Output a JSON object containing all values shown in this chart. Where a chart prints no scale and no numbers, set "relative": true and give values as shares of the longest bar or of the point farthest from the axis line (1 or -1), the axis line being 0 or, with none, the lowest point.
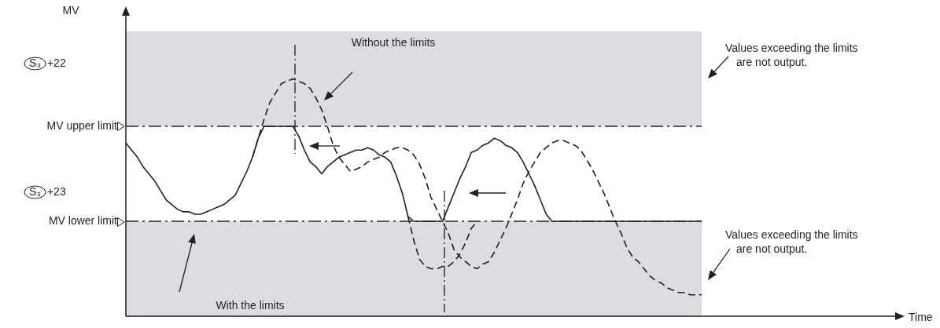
{
  "chart_data": {
    "type": "line",
    "relative": true,
    "legend": false,
    "marker": "none",
    "categories": [
      null,
      null,
      null,
      null,
      null,
      null,
      null,
      null,
      null,
      null,
      null,
      null,
      null,
      null,
      null,
      null,
      null,
      null,
      null,
      null,
      null,
      null,
      null,
      null,
      null,
      null,
      null,
      null,
      null,
      null,
      null,
      null,
      null,
      null,
      null,
      null,
      null,
      null,
      null,
      null,
      null,
      null,
      null,
      null,
      null,
      null,
      null,
      null,
      null,
      null,
      null,
      null,
      null,
      null,
      null,
      null,
      null,
      null,
      null,
      null,
      null,
      null,
      null,
      null,
      null,
      null,
      null,
      null,
      null,
      null,
      null,
      null,
      null,
      null,
      null,
      null,
      null,
      null,
      null,
      null,
      null,
      null,
      null,
      null,
      null,
      null,
      null,
      null,
      null,
      null,
      null,
      null,
      null,
      null,
      null,
      null,
      null,
      null,
      null,
      null,
      null
    ],
    "series": [
      {
        "color": "#231f20",
        "line_style": "solid",
        "values": [
          0.73,
          0.7,
          0.67,
          0.63,
          0.6,
          0.57,
          0.53,
          0.49,
          0.47,
          0.45,
          0.44,
          0.44,
          0.43,
          0.43,
          0.44,
          0.45,
          0.46,
          0.47,
          0.49,
          0.51,
          0.56,
          0.61,
          0.67,
          0.75,
          0.8,
          0.8,
          0.8,
          0.8,
          0.8,
          0.8,
          0.76,
          0.7,
          0.65,
          0.63,
          0.6,
          0.63,
          0.65,
          0.67,
          0.68,
          0.69,
          0.7,
          0.7,
          0.71,
          0.7,
          0.68,
          0.67,
          0.65,
          0.59,
          0.52,
          0.42,
          0.4,
          0.4,
          0.4,
          0.4,
          0.4,
          0.4,
          0.46,
          0.52,
          0.58,
          0.63,
          0.69,
          0.7,
          0.72,
          0.73,
          0.75,
          0.74,
          0.72,
          0.71,
          0.69,
          0.65,
          0.6,
          0.55,
          0.49,
          0.43,
          0.4,
          0.4,
          0.4,
          0.4,
          0.4,
          0.4,
          0.4,
          0.4,
          0.4,
          0.4,
          0.4,
          0.4,
          0.4,
          0.4,
          0.4,
          0.4,
          0.4,
          0.4,
          0.4,
          0.4,
          0.4,
          0.4,
          0.4,
          0.4,
          0.4,
          0.4,
          0.4
        ]
      },
      {
        "color": "#231f20",
        "line_style": "dashed",
        "values": [
          null,
          null,
          null,
          null,
          null,
          null,
          null,
          null,
          null,
          null,
          null,
          null,
          null,
          null,
          null,
          null,
          null,
          null,
          null,
          null,
          null,
          null,
          0.67,
          0.75,
          0.83,
          0.9,
          0.94,
          0.98,
          0.99,
          1.0,
          0.99,
          0.98,
          0.96,
          0.92,
          0.87,
          0.8,
          0.72,
          0.67,
          0.64,
          0.61,
          0.62,
          0.63,
          0.65,
          0.66,
          0.67,
          0.69,
          0.7,
          0.71,
          0.71,
          0.7,
          0.68,
          0.64,
          0.58,
          0.5,
          0.45,
          0.4,
          0.35,
          0.28,
          0.25,
          0.23,
          0.21,
          0.2,
          0.22,
          0.23,
          0.27,
          0.32,
          0.37,
          0.43,
          0.49,
          0.56,
          0.61,
          0.65,
          0.69,
          0.71,
          0.73,
          0.74,
          0.74,
          0.73,
          0.72,
          0.7,
          0.66,
          0.62,
          0.57,
          0.52,
          0.46,
          0.4,
          0.35,
          0.29,
          0.25,
          0.23,
          0.2,
          0.17,
          0.15,
          0.14,
          0.12,
          0.11,
          0.1,
          0.1,
          0.09,
          0.09,
          0.09
        ]
      },
      {
        "color": "#231f20",
        "line_style": "dashed",
        "values": [
          null,
          null,
          null,
          null,
          null,
          null,
          null,
          null,
          null,
          null,
          null,
          null,
          null,
          null,
          null,
          null,
          null,
          null,
          null,
          null,
          null,
          null,
          null,
          null,
          null,
          null,
          null,
          null,
          null,
          null,
          null,
          null,
          null,
          null,
          null,
          null,
          null,
          null,
          null,
          null,
          null,
          null,
          null,
          null,
          null,
          null,
          null,
          null,
          null,
          0.42,
          0.32,
          0.24,
          0.21,
          0.2,
          0.2,
          0.21,
          0.21,
          0.23,
          0.26,
          0.31,
          0.37,
          0.4,
          null,
          null,
          null,
          null,
          null,
          null,
          null,
          null,
          null,
          null,
          null,
          null,
          null,
          null,
          null,
          null,
          null,
          null,
          null,
          null,
          null,
          null,
          null,
          null,
          null,
          null,
          null,
          null,
          null,
          null,
          null,
          null,
          null,
          null,
          null,
          null,
          null,
          null,
          null
        ]
      }
    ],
    "ref_lines": [
      {
        "axis": "y",
        "value": 0.8,
        "label": "MV upper limit",
        "color": "#231f20",
        "line_style": "dashed"
      },
      {
        "axis": "y",
        "value": 0.4,
        "label": "MV lower limit",
        "color": "#231f20",
        "line_style": "dashed"
      }
    ],
    "bands": [
      {
        "axis": "y",
        "from": 0.8,
        "to": 1.2,
        "color": "#dcdde0"
      },
      {
        "axis": "y",
        "from": 0,
        "to": 0.4,
        "color": "#dcdde0"
      }
    ],
    "annotations": [
      "Without the limits",
      "With the limits",
      "Values exceeding the limits\nare not output.",
      "Values exceeding the limits\nare not output.",
      "S₃ +22",
      "S₃ +23",
      "Time",
      "MV"
    ]
  }
}
